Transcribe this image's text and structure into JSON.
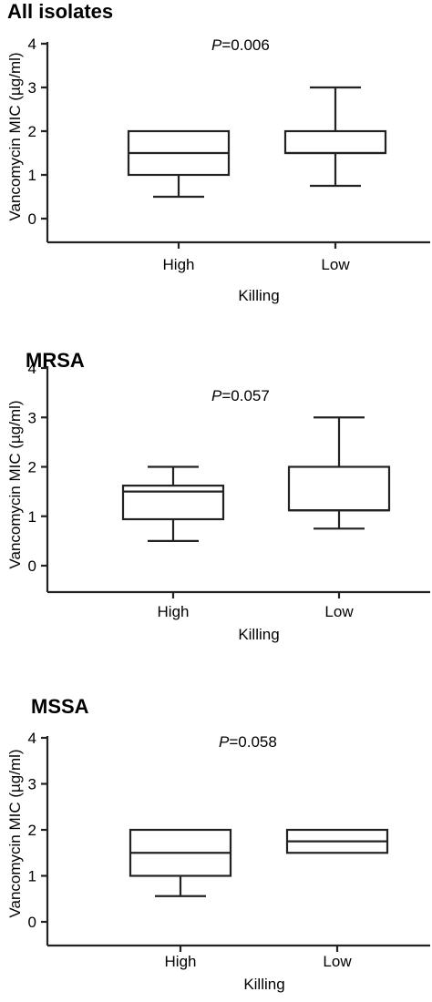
{
  "chart_data": [
    {
      "type": "box",
      "title": "All isolates",
      "annotation_prefix": "P",
      "annotation_value": "=0.006",
      "ylabel": "Vancomycin MIC (µg/ml)",
      "xlabel": "Killing",
      "ylim": [
        0,
        4
      ],
      "yticks": [
        "0",
        "1",
        "2",
        "3",
        "4"
      ],
      "categories": [
        "High",
        "Low"
      ],
      "boxes": [
        {
          "min": 0.5,
          "q1": 1.0,
          "median": 1.5,
          "q3": 2.0,
          "max": 2.0
        },
        {
          "min": 0.75,
          "q1": 1.5,
          "median": 1.5,
          "q3": 2.0,
          "max": 3.0
        }
      ]
    },
    {
      "type": "box",
      "title": "MRSA",
      "annotation_prefix": "P",
      "annotation_value": "=0.057",
      "ylabel": "Vancomycin MIC (µg/ml)",
      "xlabel": "Killing",
      "ylim": [
        0,
        4
      ],
      "yticks": [
        "0",
        "1",
        "2",
        "3",
        "4"
      ],
      "categories": [
        "High",
        "Low"
      ],
      "boxes": [
        {
          "min": 0.5,
          "q1": 0.94,
          "median": 1.5,
          "q3": 1.62,
          "max": 2.0
        },
        {
          "min": 0.75,
          "q1": 1.12,
          "median": 1.12,
          "q3": 2.0,
          "max": 3.0
        }
      ]
    },
    {
      "type": "box",
      "title": "MSSA",
      "annotation_prefix": "P",
      "annotation_value": "=0.058",
      "ylabel": "Vancomycin MIC (µg/ml)",
      "xlabel": "Killing",
      "ylim": [
        0,
        4
      ],
      "yticks": [
        "0",
        "1",
        "2",
        "3",
        "4"
      ],
      "categories": [
        "High",
        "Low"
      ],
      "boxes": [
        {
          "min": 0.56,
          "q1": 1.0,
          "median": 1.5,
          "q3": 2.0,
          "max": 2.0
        },
        {
          "min": 1.5,
          "q1": 1.5,
          "median": 1.75,
          "q3": 2.0,
          "max": 2.0
        }
      ]
    }
  ]
}
